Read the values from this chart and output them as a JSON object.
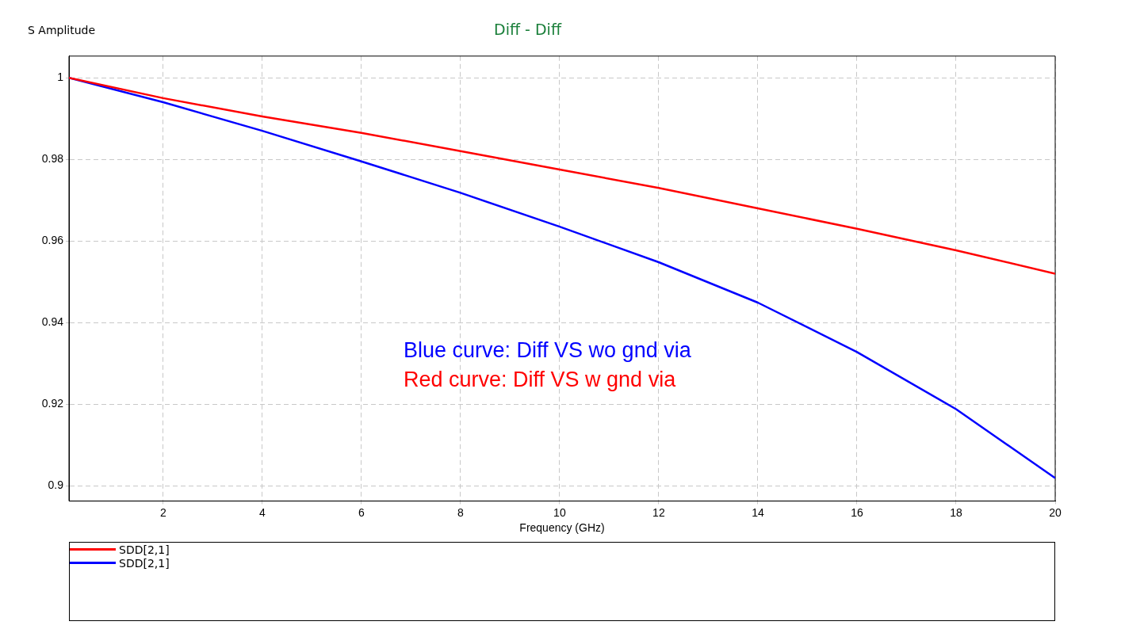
{
  "chart_data": {
    "type": "line",
    "title": "Diff - Diff",
    "xlabel": "Frequency (GHz)",
    "ylabel": "S Amplitude",
    "x": [
      0.1,
      2,
      4,
      6,
      8,
      10,
      12,
      14,
      16,
      18,
      20
    ],
    "series": [
      {
        "name": "SDD[2,1]",
        "color": "#ff0000",
        "values": [
          1.0,
          0.995,
          0.9905,
          0.9865,
          0.982,
          0.9775,
          0.973,
          0.968,
          0.963,
          0.9577,
          0.952
        ]
      },
      {
        "name": "SDD[2,1]",
        "color": "#0000ff",
        "values": [
          1.0,
          0.994,
          0.987,
          0.9795,
          0.9718,
          0.9635,
          0.9548,
          0.9449,
          0.9328,
          0.9188,
          0.9019
        ]
      }
    ],
    "xlim": [
      0.1,
      20
    ],
    "xticks": [
      2,
      4,
      6,
      8,
      10,
      12,
      14,
      16,
      18,
      20
    ],
    "ylim": [
      0.8963,
      1.0053
    ],
    "yticks": [
      0.9,
      0.92,
      0.94,
      0.96,
      0.98,
      1
    ],
    "grid": true,
    "legend": "bottom",
    "marker": "none",
    "line_style": "solid",
    "annotations": [
      "Blue curve: Diff VS wo gnd via",
      "Red curve: Diff VS w gnd via"
    ]
  }
}
